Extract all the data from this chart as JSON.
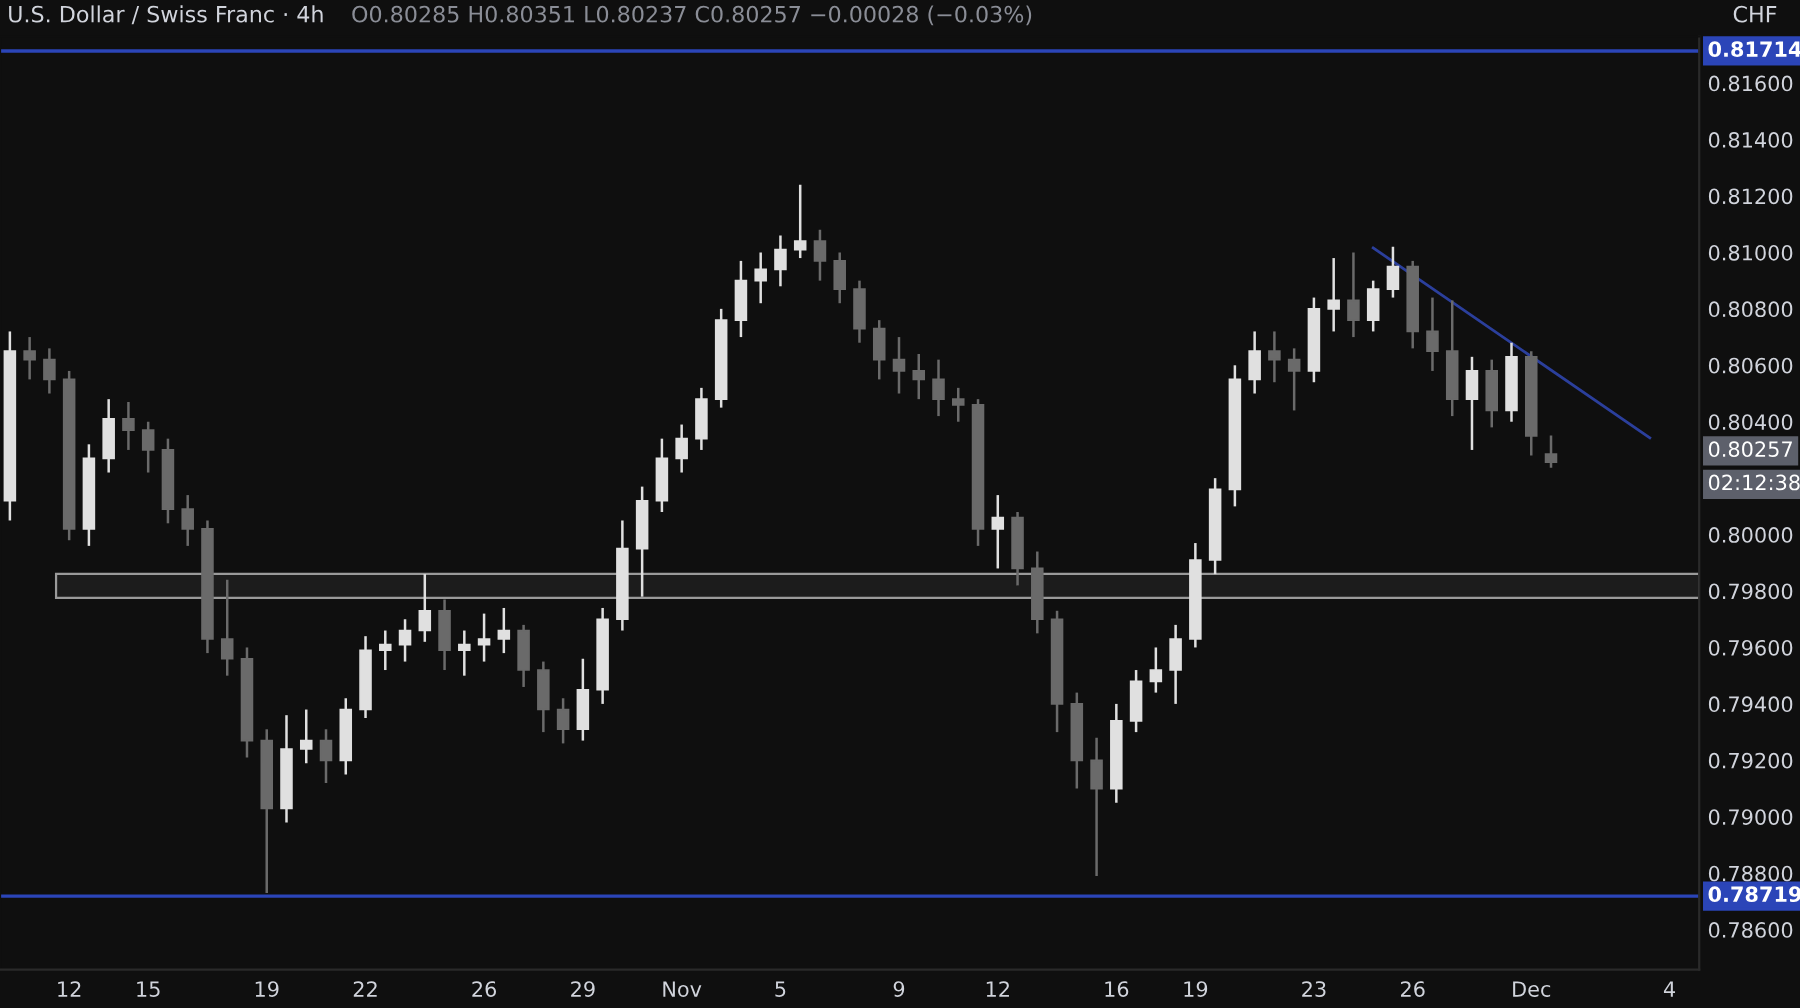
{
  "chart_data": {
    "type": "candlestick",
    "title": "U.S. Dollar / Swiss Franc · 4h",
    "subtitle": "O0.80285 H0.80351 L0.80237 C0.80257 −0.00028 (−0.03%)",
    "ylabel": "CHF",
    "categories": [
      null,
      null,
      null,
      "12",
      null,
      null,
      null,
      "15",
      null,
      null,
      null,
      null,
      null,
      "19",
      null,
      null,
      null,
      null,
      "22",
      null,
      null,
      null,
      null,
      null,
      "26",
      null,
      null,
      null,
      null,
      "29",
      null,
      null,
      null,
      null,
      "Nov",
      null,
      null,
      null,
      null,
      "5",
      null,
      null,
      null,
      null,
      null,
      "9",
      null,
      null,
      null,
      null,
      "12",
      null,
      null,
      null,
      null,
      null,
      "16",
      null,
      null,
      null,
      "19",
      null,
      null,
      null,
      null,
      null,
      "23",
      null,
      null,
      null,
      null,
      "26",
      null,
      null,
      null,
      null,
      null,
      "Dec",
      null,
      null,
      null,
      null,
      null,
      null,
      "4",
      null
    ],
    "ohlc": [
      [
        0.8012,
        0.8072,
        0.8005,
        0.8065
      ],
      [
        0.8065,
        0.807,
        0.8055,
        0.8062
      ],
      [
        0.8062,
        0.8066,
        0.805,
        0.8055
      ],
      [
        0.8055,
        0.8058,
        0.7998,
        0.8002
      ],
      [
        0.8002,
        0.8032,
        0.7996,
        0.8027
      ],
      [
        0.8027,
        0.8048,
        0.8022,
        0.8041
      ],
      [
        0.8041,
        0.8047,
        0.803,
        0.8037
      ],
      [
        0.8037,
        0.804,
        0.8022,
        0.803
      ],
      [
        0.803,
        0.8034,
        0.8004,
        0.8009
      ],
      [
        0.8009,
        0.8014,
        0.7996,
        0.8002
      ],
      [
        0.8002,
        0.8005,
        0.7958,
        0.7963
      ],
      [
        0.7963,
        0.7984,
        0.795,
        0.7956
      ],
      [
        0.7956,
        0.796,
        0.7921,
        0.7927
      ],
      [
        0.7927,
        0.7931,
        0.7873,
        0.7903
      ],
      [
        0.7903,
        0.7936,
        0.7898,
        0.7924
      ],
      [
        0.7924,
        0.7938,
        0.7919,
        0.7927
      ],
      [
        0.7927,
        0.7931,
        0.7912,
        0.792
      ],
      [
        0.792,
        0.7942,
        0.7915,
        0.7938
      ],
      [
        0.7938,
        0.7964,
        0.7935,
        0.7959
      ],
      [
        0.7959,
        0.7966,
        0.7952,
        0.7961
      ],
      [
        0.7961,
        0.797,
        0.7955,
        0.7966
      ],
      [
        0.7966,
        0.7986,
        0.7962,
        0.7973
      ],
      [
        0.7973,
        0.7977,
        0.7952,
        0.7959
      ],
      [
        0.7959,
        0.7966,
        0.795,
        0.7961
      ],
      [
        0.7961,
        0.7972,
        0.7955,
        0.7963
      ],
      [
        0.7963,
        0.7974,
        0.7958,
        0.7966
      ],
      [
        0.7966,
        0.7968,
        0.7946,
        0.7952
      ],
      [
        0.7952,
        0.7955,
        0.793,
        0.7938
      ],
      [
        0.7938,
        0.7942,
        0.7926,
        0.7931
      ],
      [
        0.7931,
        0.7956,
        0.7927,
        0.7945
      ],
      [
        0.7945,
        0.7974,
        0.794,
        0.797
      ],
      [
        0.797,
        0.8005,
        0.7966,
        0.7995
      ],
      [
        0.7995,
        0.8017,
        0.7978,
        0.8012
      ],
      [
        0.8012,
        0.8034,
        0.8008,
        0.8027
      ],
      [
        0.8027,
        0.8039,
        0.8022,
        0.8034
      ],
      [
        0.8034,
        0.8052,
        0.803,
        0.8048
      ],
      [
        0.8048,
        0.808,
        0.8045,
        0.8076
      ],
      [
        0.8076,
        0.8097,
        0.807,
        0.809
      ],
      [
        0.809,
        0.81,
        0.8082,
        0.8094
      ],
      [
        0.8094,
        0.8106,
        0.8088,
        0.8101
      ],
      [
        0.8101,
        0.8124,
        0.8098,
        0.8104
      ],
      [
        0.8104,
        0.8108,
        0.809,
        0.8097
      ],
      [
        0.8097,
        0.81,
        0.8082,
        0.8087
      ],
      [
        0.8087,
        0.809,
        0.8068,
        0.8073
      ],
      [
        0.8073,
        0.8076,
        0.8055,
        0.8062
      ],
      [
        0.8062,
        0.807,
        0.805,
        0.8058
      ],
      [
        0.8058,
        0.8064,
        0.8048,
        0.8055
      ],
      [
        0.8055,
        0.8062,
        0.8042,
        0.8048
      ],
      [
        0.8048,
        0.8052,
        0.804,
        0.8046
      ],
      [
        0.8046,
        0.8048,
        0.7996,
        0.8002
      ],
      [
        0.8002,
        0.8014,
        0.7988,
        0.8006
      ],
      [
        0.8006,
        0.8008,
        0.7982,
        0.7988
      ],
      [
        0.7988,
        0.7994,
        0.7965,
        0.797
      ],
      [
        0.797,
        0.7973,
        0.793,
        0.794
      ],
      [
        0.794,
        0.7944,
        0.791,
        0.792
      ],
      [
        0.792,
        0.7928,
        0.7879,
        0.791
      ],
      [
        0.791,
        0.794,
        0.7905,
        0.7934
      ],
      [
        0.7934,
        0.7952,
        0.793,
        0.7948
      ],
      [
        0.7948,
        0.796,
        0.7944,
        0.7952
      ],
      [
        0.7952,
        0.7968,
        0.794,
        0.7963
      ],
      [
        0.7963,
        0.7997,
        0.796,
        0.7991
      ],
      [
        0.7991,
        0.802,
        0.7986,
        0.8016
      ],
      [
        0.8016,
        0.806,
        0.801,
        0.8055
      ],
      [
        0.8055,
        0.8072,
        0.805,
        0.8065
      ],
      [
        0.8065,
        0.8072,
        0.8054,
        0.8062
      ],
      [
        0.8062,
        0.8066,
        0.8044,
        0.8058
      ],
      [
        0.8058,
        0.8084,
        0.8054,
        0.808
      ],
      [
        0.808,
        0.8098,
        0.8072,
        0.8083
      ],
      [
        0.8083,
        0.81,
        0.807,
        0.8076
      ],
      [
        0.8076,
        0.809,
        0.8072,
        0.8087
      ],
      [
        0.8087,
        0.8102,
        0.8084,
        0.8095
      ],
      [
        0.8095,
        0.8097,
        0.8066,
        0.8072
      ],
      [
        0.8072,
        0.8084,
        0.8058,
        0.8065
      ],
      [
        0.8065,
        0.8083,
        0.8042,
        0.8048
      ],
      [
        0.8048,
        0.8063,
        0.803,
        0.8058
      ],
      [
        0.8058,
        0.8062,
        0.8038,
        0.8044
      ],
      [
        0.8044,
        0.8068,
        0.804,
        0.8063
      ],
      [
        0.8063,
        0.8065,
        0.8028,
        0.8035
      ],
      [
        0.80285,
        0.80351,
        0.80237,
        0.80257
      ],
      null,
      null,
      null,
      null,
      null,
      null,
      null
    ],
    "colors": [
      "#e0e0e0",
      "#6a6a6a",
      "#6a6a6a",
      "#6a6a6a",
      "#e0e0e0",
      "#e0e0e0",
      "#6a6a6a",
      "#6a6a6a",
      "#6a6a6a",
      "#6a6a6a",
      "#6a6a6a",
      "#6a6a6a",
      "#6a6a6a",
      "#6a6a6a",
      "#e0e0e0",
      "#e0e0e0",
      "#6a6a6a",
      "#e0e0e0",
      "#e0e0e0",
      "#e0e0e0",
      "#e0e0e0",
      "#e0e0e0",
      "#6a6a6a",
      "#e0e0e0",
      "#e0e0e0",
      "#e0e0e0",
      "#6a6a6a",
      "#6a6a6a",
      "#6a6a6a",
      "#e0e0e0",
      "#e0e0e0",
      "#e0e0e0",
      "#e0e0e0",
      "#e0e0e0",
      "#e0e0e0",
      "#e0e0e0",
      "#e0e0e0",
      "#e0e0e0",
      "#e0e0e0",
      "#e0e0e0",
      "#e0e0e0",
      "#6a6a6a",
      "#6a6a6a",
      "#6a6a6a",
      "#6a6a6a",
      "#6a6a6a",
      "#6a6a6a",
      "#6a6a6a",
      "#6a6a6a",
      "#6a6a6a",
      "#e0e0e0",
      "#6a6a6a",
      "#6a6a6a",
      "#6a6a6a",
      "#6a6a6a",
      "#6a6a6a",
      "#e0e0e0",
      "#e0e0e0",
      "#e0e0e0",
      "#e0e0e0",
      "#e0e0e0",
      "#e0e0e0",
      "#e0e0e0",
      "#e0e0e0",
      "#6a6a6a",
      "#6a6a6a",
      "#e0e0e0",
      "#e0e0e0",
      "#6a6a6a",
      "#e0e0e0",
      "#e0e0e0",
      "#6a6a6a",
      "#6a6a6a",
      "#6a6a6a",
      "#e0e0e0",
      "#6a6a6a",
      "#e0e0e0",
      "#6a6a6a",
      "#6a6a6a",
      null,
      null,
      null,
      null,
      null,
      null,
      null
    ],
    "series": [
      {
        "type": "line",
        "values": [
          null,
          null,
          null,
          null,
          null,
          null,
          null,
          null,
          null,
          null,
          null,
          null,
          null,
          null,
          null,
          null,
          null,
          null,
          null,
          null,
          null,
          null,
          null,
          null,
          null,
          null,
          null,
          null,
          null,
          null,
          null,
          null,
          null,
          null,
          null,
          null,
          null,
          null,
          null,
          null,
          null,
          null,
          null,
          null,
          null,
          null,
          null,
          null,
          null,
          null,
          null,
          null,
          null,
          null,
          null,
          null,
          null,
          null,
          null,
          null,
          null,
          null,
          null,
          null,
          null,
          null,
          null,
          null,
          null,
          0.81016,
          null,
          null,
          null,
          null,
          null,
          null,
          null,
          null,
          null,
          null,
          null,
          null,
          null,
          0.80343,
          null,
          null
        ],
        "color": "#2b3f9c"
      }
    ],
    "ylim": [
      0.78458,
      0.81766
    ],
    "yticks": [
      {
        "value": 0.786,
        "label": "0.78600"
      },
      {
        "value": 0.788,
        "label": "0.78800"
      },
      {
        "value": 0.79,
        "label": "0.79000"
      },
      {
        "value": 0.792,
        "label": "0.79200"
      },
      {
        "value": 0.794,
        "label": "0.79400"
      },
      {
        "value": 0.796,
        "label": "0.79600"
      },
      {
        "value": 0.798,
        "label": "0.79800"
      },
      {
        "value": 0.8,
        "label": "0.80000"
      },
      {
        "value": 0.804,
        "label": "0.80400"
      },
      {
        "value": 0.806,
        "label": "0.80600"
      },
      {
        "value": 0.808,
        "label": "0.80800"
      },
      {
        "value": 0.81,
        "label": "0.81000"
      },
      {
        "value": 0.812,
        "label": "0.81200"
      },
      {
        "value": 0.814,
        "label": "0.81400"
      },
      {
        "value": 0.816,
        "label": "0.81600"
      }
    ],
    "ref_lines": [
      {
        "axis": "y",
        "value": 0.81714,
        "label": "0.81714",
        "color": "#2b45b8"
      },
      {
        "axis": "y",
        "value": 0.78719,
        "label": "0.78719",
        "color": "#2b45b8"
      }
    ],
    "bands": [
      {
        "axis": "y",
        "from": 0.79776,
        "to": 0.79861,
        "color": "#1c1c1c"
      }
    ],
    "annotations": [
      "0.80257",
      "02:12:38"
    ],
    "grid": false,
    "legend": false
  }
}
